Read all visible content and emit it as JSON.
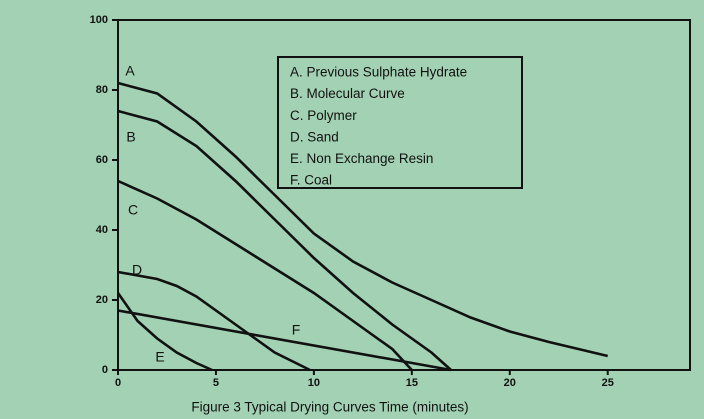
{
  "chart_data": {
    "type": "line",
    "x_label": "Figure 3  Typical Drying Curves Time (minutes)",
    "xlim": [
      0,
      29.2
    ],
    "xticks": [
      0,
      5,
      10,
      15,
      20,
      25
    ],
    "ylim": [
      0,
      100
    ],
    "yticks": [
      0,
      20,
      40,
      60,
      80,
      100
    ],
    "legend": [
      "A. Previous Sulphate Hydrate",
      "B. Molecular Curve",
      "C. Polymer",
      "D. Sand",
      "E. Non Exchange Resin",
      "F. Coal"
    ],
    "legend_position": "upper center",
    "series": [
      {
        "name": "A",
        "color": "#111111",
        "x": [
          0,
          2,
          4,
          6,
          8,
          10,
          12,
          14,
          16,
          18,
          20,
          22,
          25
        ],
        "values": [
          82,
          79,
          71,
          61,
          50,
          39,
          31,
          25,
          20,
          15,
          11,
          8,
          4
        ]
      },
      {
        "name": "B",
        "color": "#111111",
        "x": [
          0,
          2,
          4,
          6,
          8,
          10,
          12,
          14,
          16,
          17
        ],
        "values": [
          74,
          71,
          64,
          54,
          43,
          32,
          22,
          13,
          5,
          0
        ]
      },
      {
        "name": "C",
        "color": "#111111",
        "x": [
          0,
          2,
          4,
          6,
          8,
          10,
          12,
          14,
          15
        ],
        "values": [
          54,
          49,
          43,
          36,
          29,
          22,
          14,
          6,
          0
        ]
      },
      {
        "name": "D",
        "color": "#111111",
        "x": [
          0,
          2,
          3,
          4,
          6,
          8,
          9.8
        ],
        "values": [
          28,
          26,
          24,
          21,
          13,
          5,
          0
        ]
      },
      {
        "name": "E",
        "color": "#111111",
        "x": [
          0,
          1,
          2,
          3,
          4,
          4.8
        ],
        "values": [
          22,
          14,
          9,
          5,
          2,
          0
        ]
      },
      {
        "name": "F",
        "color": "#111111",
        "x": [
          0,
          17
        ],
        "values": [
          17,
          0
        ]
      }
    ]
  }
}
